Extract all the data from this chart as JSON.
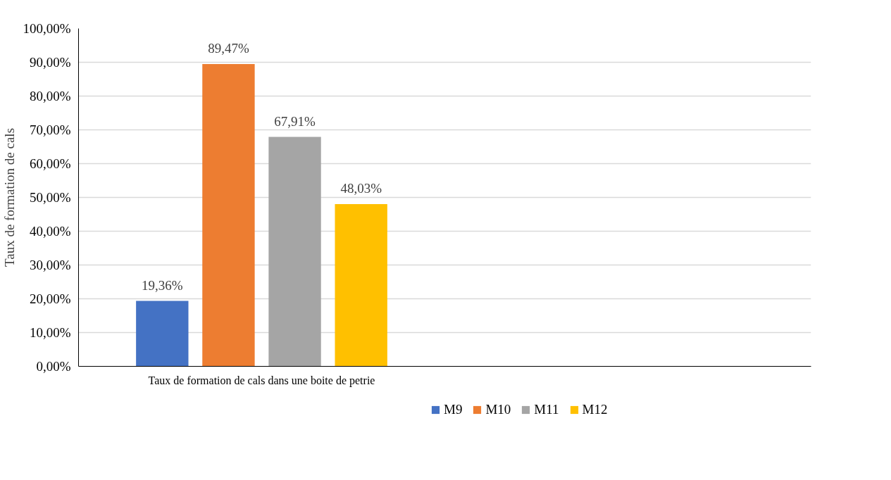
{
  "chart_data": {
    "type": "bar",
    "ylabel": "Taux de formation de cals",
    "categories": [
      "Taux de formation de cals dans une boite de petrie",
      null
    ],
    "series": [
      {
        "name": "M9",
        "color": "#4472c4",
        "values": [
          19.36,
          null
        ],
        "value_labels": [
          "19,36%",
          null
        ]
      },
      {
        "name": "M10",
        "color": "#ed7d31",
        "values": [
          89.47,
          null
        ],
        "value_labels": [
          "89,47%",
          null
        ]
      },
      {
        "name": "M11",
        "color": "#a5a5a5",
        "values": [
          67.91,
          null
        ],
        "value_labels": [
          "67,91%",
          null
        ]
      },
      {
        "name": "M12",
        "color": "#ffc000",
        "values": [
          48.03,
          null
        ],
        "value_labels": [
          "48,03%",
          null
        ]
      }
    ],
    "ylim": [
      0,
      100
    ],
    "yticks": [
      {
        "value": 0,
        "label": "0,00%"
      },
      {
        "value": 10,
        "label": "10,00%"
      },
      {
        "value": 20,
        "label": "20,00%"
      },
      {
        "value": 30,
        "label": "30,00%"
      },
      {
        "value": 40,
        "label": "40,00%"
      },
      {
        "value": 50,
        "label": "50,00%"
      },
      {
        "value": 60,
        "label": "60,00%"
      },
      {
        "value": 70,
        "label": "70,00%"
      },
      {
        "value": 80,
        "label": "80,00%"
      },
      {
        "value": 90,
        "label": "90,00%"
      },
      {
        "value": 100,
        "label": "100,00%"
      }
    ],
    "grid": "y",
    "legend": "bottom"
  }
}
